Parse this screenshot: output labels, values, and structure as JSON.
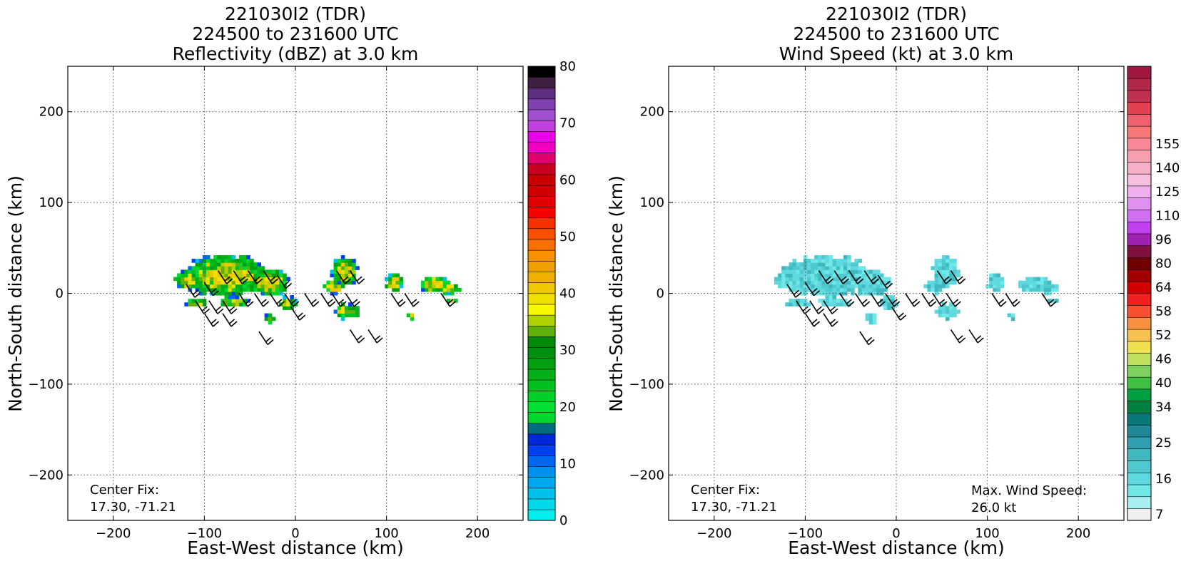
{
  "chart_data": [
    {
      "type": "heatmap",
      "title": [
        "221030I2 (TDR)",
        "224500 to 231600 UTC",
        "Reflectivity (dBZ) at 3.0 km"
      ],
      "xlabel": "East-West distance (km)",
      "ylabel": "North-South distance (km)",
      "xlim": [
        -250,
        250
      ],
      "ylim": [
        -250,
        250
      ],
      "xticks": [
        -200,
        -100,
        0,
        100,
        200
      ],
      "yticks": [
        -200,
        -100,
        0,
        100,
        200
      ],
      "grid": true,
      "annotation": {
        "label": "Center Fix:",
        "value": "17.30, -71.21"
      },
      "colorbar": {
        "min": 0,
        "max": 80,
        "tick_values": [
          0,
          10,
          20,
          30,
          40,
          50,
          60,
          70,
          80
        ],
        "colors": [
          "#00f0f0",
          "#00d8ec",
          "#00c0ec",
          "#00a8f0",
          "#0090f0",
          "#0068f0",
          "#0040f0",
          "#0028d8",
          "#006c80",
          "#00d830",
          "#00e030",
          "#00d028",
          "#00c020",
          "#00b018",
          "#00a010",
          "#009010",
          "#008808",
          "#60b008",
          "#b0d000",
          "#f8f800",
          "#f0e000",
          "#f0c800",
          "#f0b000",
          "#f0a000",
          "#f89000",
          "#f87000",
          "#f85000",
          "#f83000",
          "#f80000",
          "#e00000",
          "#d00000",
          "#c80000",
          "#c80020",
          "#e00070",
          "#f000c0",
          "#e800e8",
          "#c040e0",
          "#a050d0",
          "#8040b0",
          "#603080",
          "#402040",
          "#000000"
        ]
      },
      "wind_barbs": "present"
    },
    {
      "type": "heatmap",
      "title": [
        "221030I2 (TDR)",
        "224500 to 231600 UTC",
        "Wind Speed (kt) at 3.0 km"
      ],
      "xlabel": "East-West distance (km)",
      "ylabel": "North-South distance (km)",
      "xlim": [
        -250,
        250
      ],
      "ylim": [
        -250,
        250
      ],
      "xticks": [
        -200,
        -100,
        0,
        100,
        200
      ],
      "yticks": [
        -200,
        -100,
        0,
        100,
        200
      ],
      "grid": true,
      "annotation": {
        "label": "Center Fix:",
        "value": "17.30, -71.21"
      },
      "max_wind": {
        "label": "Max. Wind Speed:",
        "value": "26.0 kt"
      },
      "colorbar": {
        "tick_labels": [
          "7",
          "16",
          "25",
          "34",
          "40",
          "46",
          "52",
          "58",
          "64",
          "80",
          "96",
          "110",
          "125",
          "140",
          "155"
        ],
        "tick_bins": [
          0,
          3,
          6,
          9,
          11,
          13,
          15,
          17,
          19,
          21,
          23,
          25,
          27,
          29,
          31
        ],
        "colors": [
          "#f0f0f0",
          "#a8f0f0",
          "#70e8e8",
          "#60d8e0",
          "#50c8d0",
          "#40b8c0",
          "#30a0b0",
          "#208898",
          "#087878",
          "#008040",
          "#00a040",
          "#40c040",
          "#80d060",
          "#c0e060",
          "#f0e050",
          "#f8c050",
          "#f89040",
          "#f85030",
          "#f02020",
          "#d00000",
          "#a00000",
          "#700000",
          "#801040",
          "#a020b0",
          "#c040f0",
          "#d070f0",
          "#e090f0",
          "#f0b0f0",
          "#f8c0e0",
          "#f8b0c8",
          "#f8a0b0",
          "#f88898",
          "#f87878",
          "#f06070",
          "#e04050",
          "#c03050",
          "#b02848",
          "#a01840"
        ]
      },
      "wind_barbs": "present"
    }
  ]
}
